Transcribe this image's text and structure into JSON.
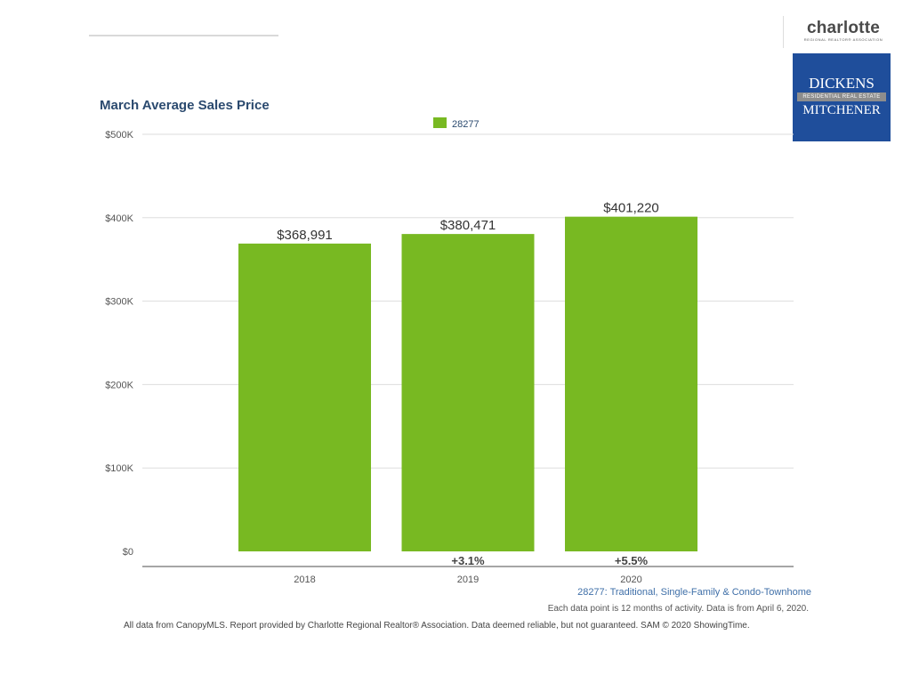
{
  "logos": {
    "crr_word": "charlotte",
    "crr_sub": "REGIONAL REALTOR® ASSOCIATION",
    "dm_top": "DICKENS",
    "dm_band": "RESIDENTIAL REAL ESTATE",
    "dm_bottom": "MITCHENER"
  },
  "colors": {
    "bar": "#78b922",
    "title": "#2b4a6f",
    "logo_blue": "#1f4e9b",
    "subtitle": "#3f6fa8"
  },
  "chart_data": {
    "type": "bar",
    "title": "March Average Sales Price",
    "categories": [
      "2018",
      "2019",
      "2020"
    ],
    "series": [
      {
        "name": "28277",
        "values": [
          368991,
          380471,
          401220
        ]
      }
    ],
    "value_labels": [
      "$368,991",
      "$380,471",
      "$401,220"
    ],
    "change_labels": [
      "",
      "+3.1%",
      "+5.5%"
    ],
    "ylim": [
      0,
      500000
    ],
    "yticks": [
      0,
      100000,
      200000,
      300000,
      400000,
      500000
    ],
    "ytick_labels": [
      "$0",
      "$100K",
      "$200K",
      "$300K",
      "$400K",
      "$500K"
    ],
    "legend_position": "top-center",
    "grid": true
  },
  "text": {
    "subtitle": "28277: Traditional, Single-Family & Condo-Townhome",
    "note": "Each data point is 12 months of activity. Data is from April 6, 2020.",
    "footer": "All data from CanopyMLS. Report provided by Charlotte Regional Realtor® Association. Data deemed reliable, but not guaranteed. SAM © 2020 ShowingTime."
  }
}
